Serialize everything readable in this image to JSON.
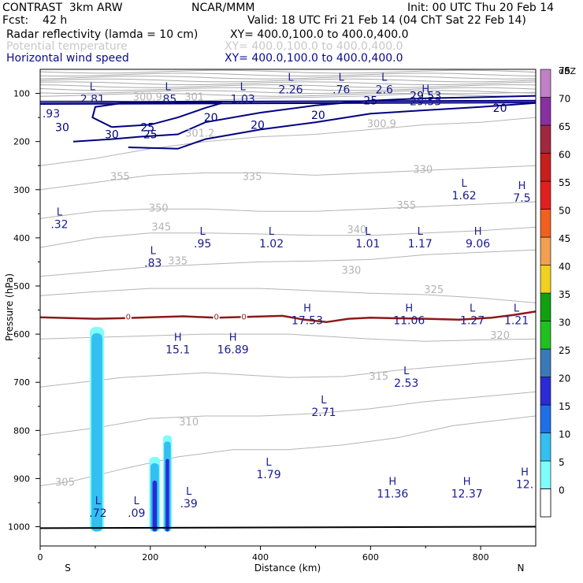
{
  "header": {
    "model": "CONTRAST  3km ARW",
    "org": "NCAR/MMM",
    "init": "Init: 00 UTC Thu 20 Feb 14",
    "fcst": "Fcst:    42 h",
    "valid": "Valid: 18 UTC Fri 21 Feb 14 (04 ChT Sat 22 Feb 14)"
  },
  "fields": [
    {
      "name": "Radar reflectivity (lamda = 10 cm)",
      "xy": "XY= 400.0,100.0 to 400.0,400.0",
      "style": "black"
    },
    {
      "name": "Potential temperature",
      "xy": "XY= 400.0,100.0 to 400.0,400.0",
      "style": "gray"
    },
    {
      "name": "Horizontal wind speed",
      "xy": "XY= 400.0,100.0 to 400.0,400.0",
      "style": "navy"
    }
  ],
  "chart_data": {
    "type": "cross-section",
    "xlabel": "Distance (km)",
    "ylabel": "Pressure (hPa)",
    "xlim": [
      0,
      900
    ],
    "ylim": [
      1040,
      50
    ],
    "xticks": [
      0,
      200,
      400,
      600,
      800
    ],
    "yticks": [
      100,
      200,
      300,
      400,
      500,
      600,
      700,
      800,
      900,
      1000
    ],
    "x_end_labels": {
      "left": "S",
      "right": "N"
    },
    "colorbar": {
      "units": "dBZ",
      "levels": [
        "0",
        "5",
        "10",
        "15",
        "20",
        "25",
        "30",
        "35",
        "40",
        "45",
        "50",
        "55",
        "60",
        "65",
        "70",
        "75"
      ],
      "colors": [
        "#ffffff",
        "#7ffcfc",
        "#33bff0",
        "#1f6fe6",
        "#2b2bd6",
        "#3a7ab8",
        "#20c020",
        "#10a010",
        "#f0d020",
        "#f0a050",
        "#f06020",
        "#e02020",
        "#c81e1e",
        "#a02840",
        "#8830a0",
        "#c080c8"
      ]
    },
    "reflectivity_cells": [
      {
        "center_km": 103,
        "width_km": 26,
        "top_hpa": 585,
        "bottom_hpa": 1010,
        "max_dbz": 15
      },
      {
        "center_km": 208,
        "width_km": 20,
        "top_hpa": 855,
        "bottom_hpa": 1010,
        "max_dbz": 25
      },
      {
        "center_km": 231,
        "width_km": 16,
        "top_hpa": 810,
        "bottom_hpa": 1010,
        "max_dbz": 20
      }
    ],
    "theta_contours": [
      {
        "label": "305",
        "points": [
          [
            0,
            915
          ],
          [
            60,
            905
          ],
          [
            150,
            880
          ],
          [
            250,
            855
          ],
          [
            350,
            840
          ],
          [
            450,
            840
          ],
          [
            550,
            830
          ],
          [
            650,
            815
          ],
          [
            750,
            790
          ],
          [
            900,
            770
          ]
        ]
      },
      {
        "label": "310",
        "points": [
          [
            0,
            810
          ],
          [
            100,
            795
          ],
          [
            200,
            775
          ],
          [
            300,
            770
          ],
          [
            400,
            770
          ],
          [
            500,
            765
          ],
          [
            600,
            755
          ],
          [
            700,
            740
          ],
          [
            800,
            730
          ],
          [
            900,
            720
          ]
        ]
      },
      {
        "label": "315",
        "points": [
          [
            0,
            710
          ],
          [
            150,
            690
          ],
          [
            300,
            680
          ],
          [
            450,
            690
          ],
          [
            550,
            688
          ],
          [
            650,
            675
          ],
          [
            750,
            665
          ],
          [
            900,
            650
          ]
        ]
      },
      {
        "label": "320",
        "points": [
          [
            0,
            610
          ],
          [
            150,
            605
          ],
          [
            300,
            600
          ],
          [
            450,
            600
          ],
          [
            600,
            610
          ],
          [
            700,
            615
          ],
          [
            800,
            612
          ],
          [
            900,
            610
          ]
        ]
      },
      {
        "label": "325",
        "points": [
          [
            0,
            520
          ],
          [
            100,
            512
          ],
          [
            200,
            505
          ],
          [
            300,
            505
          ],
          [
            400,
            505
          ],
          [
            500,
            510
          ],
          [
            600,
            515
          ],
          [
            700,
            518
          ],
          [
            800,
            525
          ],
          [
            900,
            535
          ]
        ]
      },
      {
        "label": "330",
        "points": [
          [
            0,
            480
          ],
          [
            100,
            470
          ],
          [
            200,
            460
          ],
          [
            300,
            455
          ],
          [
            400,
            450
          ],
          [
            500,
            448
          ],
          [
            600,
            445
          ],
          [
            700,
            435
          ],
          [
            800,
            430
          ],
          [
            900,
            425
          ]
        ]
      },
      {
        "label": "335",
        "points": [
          [
            0,
            420
          ],
          [
            100,
            400
          ],
          [
            200,
            390
          ],
          [
            300,
            390
          ],
          [
            400,
            392
          ],
          [
            500,
            395
          ],
          [
            600,
            395
          ],
          [
            700,
            390
          ],
          [
            800,
            385
          ],
          [
            900,
            378
          ]
        ]
      },
      {
        "label": "340",
        "points": [
          [
            0,
            360
          ],
          [
            100,
            345
          ],
          [
            200,
            340
          ],
          [
            300,
            340
          ],
          [
            400,
            345
          ],
          [
            500,
            345
          ],
          [
            600,
            340
          ],
          [
            700,
            335
          ],
          [
            800,
            330
          ],
          [
            900,
            325
          ]
        ]
      },
      {
        "label": "345",
        "points": [
          [
            0,
            300
          ],
          [
            100,
            285
          ],
          [
            200,
            270
          ],
          [
            300,
            265
          ],
          [
            400,
            265
          ],
          [
            500,
            270
          ],
          [
            600,
            265
          ],
          [
            700,
            260
          ],
          [
            800,
            255
          ],
          [
            900,
            250
          ]
        ]
      },
      {
        "label": "350",
        "points": [
          [
            0,
            250
          ],
          [
            100,
            235
          ],
          [
            200,
            215
          ],
          [
            300,
            200
          ],
          [
            400,
            190
          ],
          [
            500,
            185
          ],
          [
            600,
            175
          ],
          [
            700,
            165
          ],
          [
            800,
            160
          ],
          [
            900,
            150
          ]
        ]
      },
      {
        "label": "355",
        "points": [
          [
            0,
            115
          ],
          [
            100,
            115
          ],
          [
            200,
            118
          ],
          [
            300,
            115
          ],
          [
            400,
            110
          ],
          [
            500,
            108
          ],
          [
            600,
            105
          ],
          [
            700,
            100
          ],
          [
            800,
            100
          ],
          [
            900,
            98
          ]
        ]
      }
    ],
    "theta_labels": [
      "305",
      "310",
      "315",
      "320",
      "325",
      "330",
      "335",
      "340",
      "345",
      "350",
      "355",
      "355",
      "335",
      "330",
      "300.9",
      "301.2",
      "300.9",
      "301"
    ],
    "wind_contours": [
      {
        "label": "20",
        "points": [
          [
            160,
            212
          ],
          [
            250,
            215
          ],
          [
            300,
            195
          ],
          [
            400,
            175
          ],
          [
            500,
            160
          ],
          [
            600,
            142
          ],
          [
            700,
            135
          ],
          [
            800,
            128
          ],
          [
            900,
            120
          ]
        ]
      },
      {
        "label": "25",
        "points": [
          [
            60,
            200
          ],
          [
            130,
            195
          ],
          [
            180,
            190
          ],
          [
            250,
            185
          ],
          [
            300,
            160
          ],
          [
            400,
            140
          ],
          [
            500,
            125
          ],
          [
            600,
            115
          ],
          [
            700,
            110
          ],
          [
            800,
            108
          ],
          [
            900,
            105
          ]
        ]
      },
      {
        "label": "30",
        "points": [
          [
            130,
            170
          ],
          [
            200,
            165
          ],
          [
            250,
            150
          ],
          [
            300,
            130
          ],
          [
            330,
            120
          ],
          [
            250,
            118
          ],
          [
            150,
            120
          ],
          [
            100,
            128
          ],
          [
            95,
            150
          ],
          [
            130,
            170
          ]
        ]
      }
    ],
    "wind_labels": [
      "30",
      "25",
      "20",
      "25",
      "30",
      "20",
      "20",
      "25",
      "29.53",
      "20"
    ],
    "freezing_level": {
      "label": "0",
      "points": [
        [
          0,
          565
        ],
        [
          100,
          568
        ],
        [
          150,
          567
        ],
        [
          200,
          565
        ],
        [
          260,
          563
        ],
        [
          320,
          566
        ],
        [
          380,
          564
        ],
        [
          440,
          562
        ],
        [
          480,
          570
        ],
        [
          520,
          575
        ],
        [
          560,
          568
        ],
        [
          600,
          566
        ],
        [
          640,
          567
        ],
        [
          700,
          568
        ],
        [
          760,
          570
        ],
        [
          820,
          566
        ],
        [
          860,
          560
        ],
        [
          900,
          553
        ]
      ]
    },
    "extrema": [
      {
        "type": "L",
        "value": "2.81",
        "x": 95,
        "p": 100
      },
      {
        "type": "L",
        "value": ".85",
        "x": 232,
        "p": 100
      },
      {
        "type": "L",
        "value": "1.03",
        "x": 368,
        "p": 100
      },
      {
        "type": "L",
        "value": "2.26",
        "x": 455,
        "p": 80
      },
      {
        "type": "L",
        "value": ".76",
        "x": 547,
        "p": 80
      },
      {
        "type": "L",
        "value": "2.6",
        "x": 625,
        "p": 80
      },
      {
        "type": "H",
        "value": "29.53",
        "x": 700,
        "p": 105
      },
      {
        "type": "",
        "value": ".93",
        "x": 20,
        "p": 130
      },
      {
        "type": "L",
        "value": "1.62",
        "x": 770,
        "p": 300
      },
      {
        "type": "H",
        "value": "7.5",
        "x": 875,
        "p": 305
      },
      {
        "type": "L",
        "value": ".32",
        "x": 35,
        "p": 360
      },
      {
        "type": "L",
        "value": ".95",
        "x": 295,
        "p": 400
      },
      {
        "type": "L",
        "value": "1.02",
        "x": 420,
        "p": 400
      },
      {
        "type": "L",
        "value": "1.01",
        "x": 595,
        "p": 400
      },
      {
        "type": "L",
        "value": "1.17",
        "x": 690,
        "p": 400
      },
      {
        "type": "H",
        "value": "9.06",
        "x": 795,
        "p": 400
      },
      {
        "type": "L",
        "value": ".83",
        "x": 205,
        "p": 440
      },
      {
        "type": "H",
        "value": "17.53",
        "x": 485,
        "p": 560
      },
      {
        "type": "H",
        "value": "11.06",
        "x": 670,
        "p": 560
      },
      {
        "type": "L",
        "value": "1.27",
        "x": 785,
        "p": 560
      },
      {
        "type": "L",
        "value": "1.21",
        "x": 865,
        "p": 560
      },
      {
        "type": "H",
        "value": "15.1",
        "x": 250,
        "p": 620
      },
      {
        "type": "H",
        "value": "16.89",
        "x": 350,
        "p": 620
      },
      {
        "type": "L",
        "value": "2.53",
        "x": 665,
        "p": 690
      },
      {
        "type": "L",
        "value": "2.71",
        "x": 515,
        "p": 750
      },
      {
        "type": "L",
        "value": "1.79",
        "x": 415,
        "p": 880
      },
      {
        "type": "H",
        "value": "11.36",
        "x": 640,
        "p": 920
      },
      {
        "type": "H",
        "value": "12.37",
        "x": 775,
        "p": 920
      },
      {
        "type": "H",
        "value": "12.",
        "x": 880,
        "p": 900
      },
      {
        "type": "L",
        "value": ".72",
        "x": 105,
        "p": 960
      },
      {
        "type": "L",
        "value": ".09",
        "x": 175,
        "p": 960
      },
      {
        "type": "L",
        "value": ".39",
        "x": 270,
        "p": 940
      }
    ]
  }
}
